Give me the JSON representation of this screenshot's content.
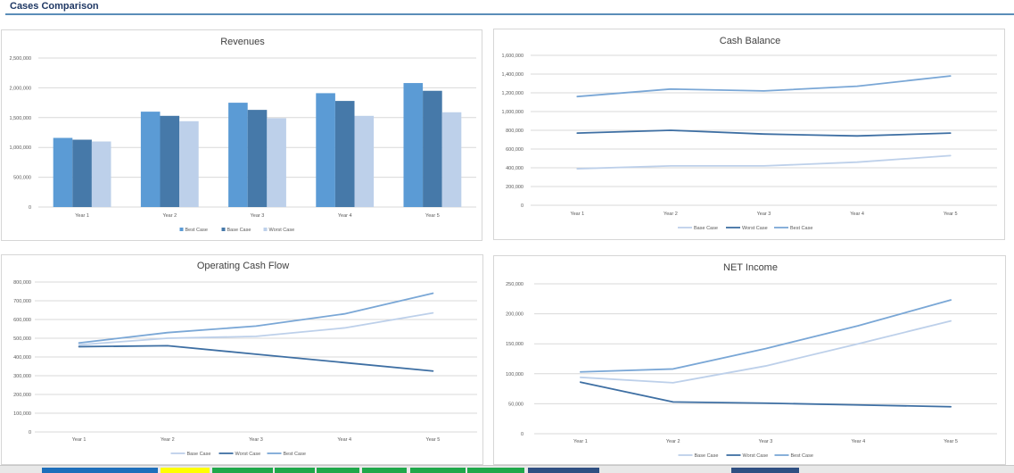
{
  "header": {
    "title": "Cases Comparison"
  },
  "tabs": [
    {
      "color": "#1e6fbb"
    },
    {
      "color": "#ffff00"
    },
    {
      "color": "#1fa84a"
    },
    {
      "color": "#1fa84a"
    },
    {
      "color": "#1fa84a"
    },
    {
      "color": "#1fa84a"
    },
    {
      "color": "#1fa84a"
    },
    {
      "color": "#1fa84a"
    },
    {
      "color": "#2f4f82"
    },
    {
      "color": "#2f4f82"
    }
  ],
  "colors": {
    "best": "#5B9BD5",
    "base": "#4679A9",
    "worst": "#BDD0EA",
    "grid": "#d9d9d9",
    "text": "#595959",
    "title": "#404040"
  },
  "chart_data": [
    {
      "id": "revenues",
      "type": "bar",
      "title": "Revenues",
      "categories": [
        "Year 1",
        "Year 2",
        "Year 3",
        "Year 4",
        "Year 5"
      ],
      "series": [
        {
          "name": "Best Case",
          "color": "#5B9BD5",
          "values": [
            1160000,
            1600000,
            1750000,
            1910000,
            2080000
          ]
        },
        {
          "name": "Base Case",
          "color": "#4679A9",
          "values": [
            1130000,
            1530000,
            1630000,
            1780000,
            1950000
          ]
        },
        {
          "name": "Worst Case",
          "color": "#BDD0EA",
          "values": [
            1100000,
            1440000,
            1490000,
            1530000,
            1590000
          ]
        }
      ],
      "ylim": [
        0,
        2500000
      ],
      "yticks": [
        "2,500,000",
        "2,000,000",
        "1,500,000",
        "1,000,000",
        "500,000",
        "0"
      ],
      "legend": "bottom",
      "grid": true
    },
    {
      "id": "cash-balance",
      "type": "line",
      "title": "Cash Balance",
      "categories": [
        "Year 1",
        "Year 2",
        "Year 3",
        "Year 4",
        "Year 5"
      ],
      "series": [
        {
          "name": "Base Case",
          "color": "#BDD0EA",
          "values": [
            390000,
            420000,
            420000,
            460000,
            530000
          ]
        },
        {
          "name": "Worst Case",
          "color": "#3E6FA3",
          "values": [
            770000,
            800000,
            760000,
            740000,
            770000
          ]
        },
        {
          "name": "Best Case",
          "color": "#7AA7D6",
          "values": [
            1160000,
            1240000,
            1220000,
            1270000,
            1380000
          ]
        }
      ],
      "ylim": [
        0,
        1600000
      ],
      "yticks": [
        "1,600,000",
        "1,400,000",
        "1,200,000",
        "1,000,000",
        "800,000",
        "600,000",
        "400,000",
        "200,000",
        "0"
      ],
      "legend": "bottom",
      "grid": true
    },
    {
      "id": "operating-cash-flow",
      "type": "line",
      "title": "Operating Cash Flow",
      "categories": [
        "Year 1",
        "Year 2",
        "Year 3",
        "Year 4",
        "Year 5"
      ],
      "series": [
        {
          "name": "Base Case",
          "color": "#BDD0EA",
          "values": [
            465000,
            500000,
            510000,
            555000,
            635000
          ]
        },
        {
          "name": "Worst Case",
          "color": "#3E6FA3",
          "values": [
            455000,
            460000,
            415000,
            370000,
            325000
          ]
        },
        {
          "name": "Best Case",
          "color": "#7AA7D6",
          "values": [
            475000,
            530000,
            565000,
            630000,
            740000
          ]
        }
      ],
      "ylim": [
        0,
        800000
      ],
      "yticks": [
        "800,000",
        "700,000",
        "600,000",
        "500,000",
        "400,000",
        "300,000",
        "200,000",
        "100,000",
        "0"
      ],
      "legend": "bottom",
      "grid": true
    },
    {
      "id": "net-income",
      "type": "line",
      "title": "NET Income",
      "categories": [
        "Year 1",
        "Year 2",
        "Year 3",
        "Year 4",
        "Year 5"
      ],
      "series": [
        {
          "name": "Base Case",
          "color": "#BDD0EA",
          "values": [
            94000,
            85000,
            113000,
            150000,
            188000
          ]
        },
        {
          "name": "Worst Case",
          "color": "#3E6FA3",
          "values": [
            86000,
            53000,
            51000,
            48000,
            45000
          ]
        },
        {
          "name": "Best Case",
          "color": "#7AA7D6",
          "values": [
            103000,
            108000,
            142000,
            180000,
            223000
          ]
        }
      ],
      "ylim": [
        0,
        250000
      ],
      "yticks": [
        "250,000",
        "200,000",
        "150,000",
        "100,000",
        "50,000",
        "0"
      ],
      "legend": "bottom",
      "grid": true
    }
  ]
}
